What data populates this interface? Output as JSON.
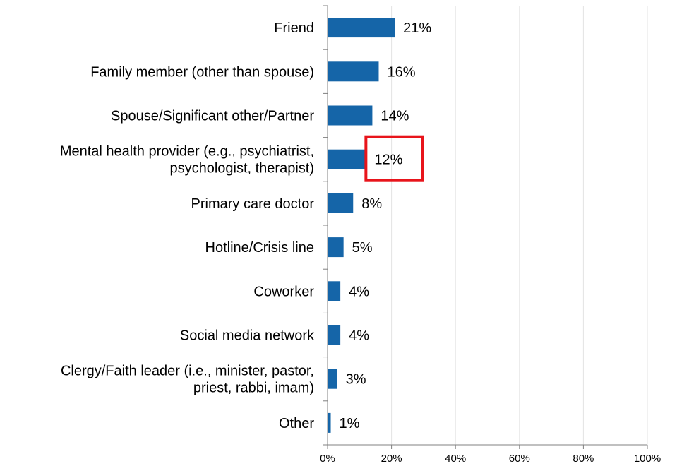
{
  "chart_data": {
    "type": "bar",
    "orientation": "horizontal",
    "categories": [
      [
        "Friend"
      ],
      [
        "Family member (other than spouse)"
      ],
      [
        "Spouse/Significant other/Partner"
      ],
      [
        "Mental health provider (e.g., psychiatrist,",
        "psychologist, therapist)"
      ],
      [
        "Primary care doctor"
      ],
      [
        "Hotline/Crisis line"
      ],
      [
        "Coworker"
      ],
      [
        "Social media network"
      ],
      [
        "Clergy/Faith leader (i.e., minister, pastor,",
        "priest, rabbi, imam)"
      ],
      [
        "Other"
      ]
    ],
    "values": [
      21,
      16,
      14,
      12,
      8,
      5,
      4,
      4,
      3,
      1
    ],
    "value_labels": [
      "21%",
      "16%",
      "14%",
      "12%",
      "8%",
      "5%",
      "4%",
      "4%",
      "3%",
      "1%"
    ],
    "xlim": [
      0,
      100
    ],
    "xticks": [
      0,
      20,
      40,
      60,
      80,
      100
    ],
    "xtick_labels": [
      "0%",
      "20%",
      "40%",
      "60%",
      "80%",
      "100%"
    ],
    "grid": "vertical",
    "highlight_index": 3,
    "colors": {
      "bar": "#1565a8",
      "grid": "#e3e3e3",
      "axis": "#808080",
      "highlight": "#e8141b"
    }
  }
}
